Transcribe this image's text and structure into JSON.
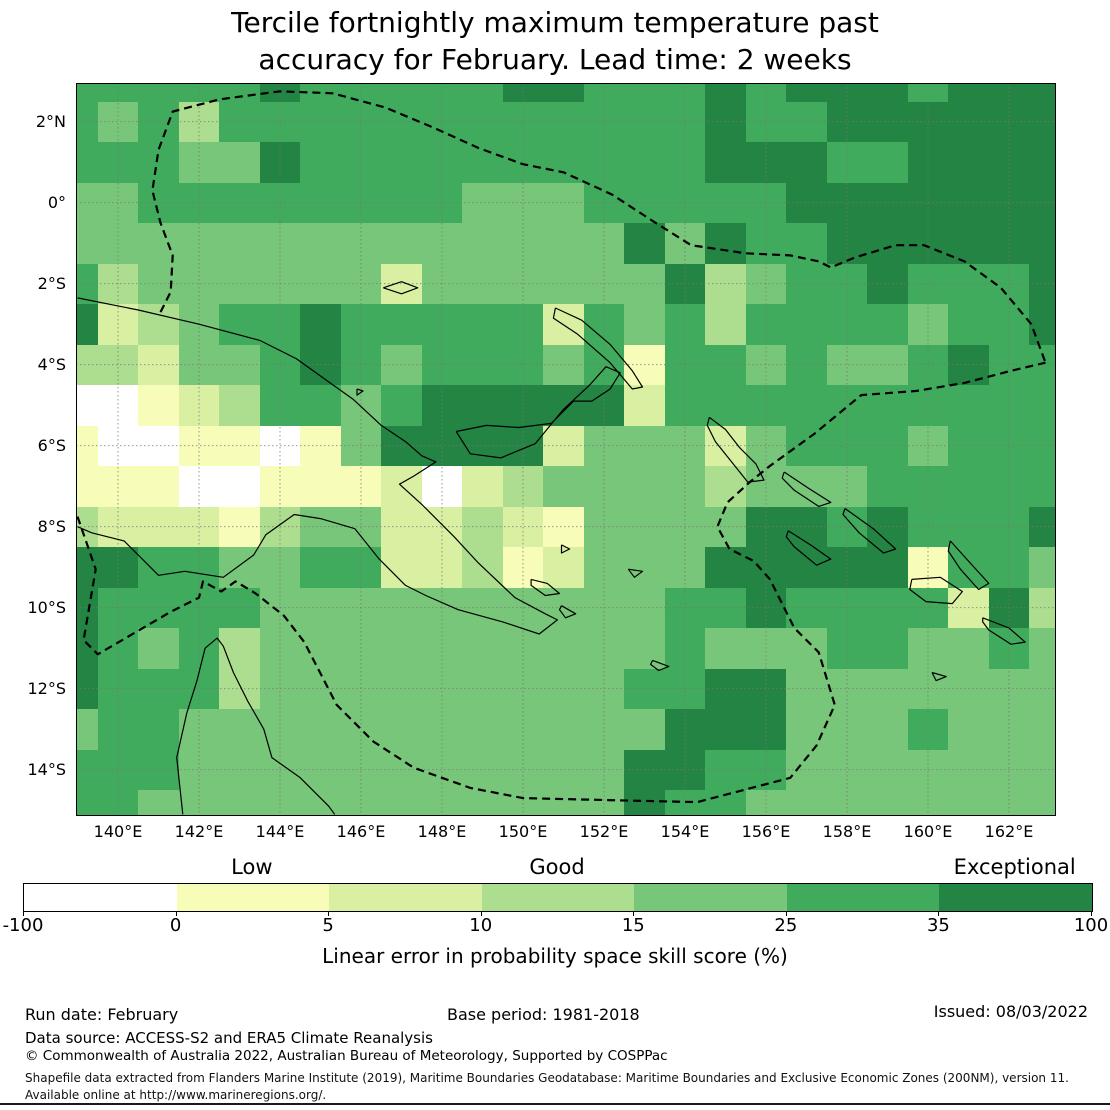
{
  "title": {
    "line1": "Tercile fortnightly maximum temperature past",
    "line2": "accuracy for February. Lead time: 2 weeks"
  },
  "axes": {
    "y_labels": [
      "2°N",
      "0°",
      "2°S",
      "4°S",
      "6°S",
      "8°S",
      "10°S",
      "12°S",
      "14°S"
    ],
    "x_labels": [
      "140°E",
      "142°E",
      "144°E",
      "146°E",
      "148°E",
      "150°E",
      "152°E",
      "154°E",
      "156°E",
      "158°E",
      "160°E",
      "162°E"
    ]
  },
  "colorbar": {
    "category_labels": [
      "Low",
      "Good",
      "Exceptional"
    ],
    "category_over_segment": [
      1,
      3,
      6
    ],
    "tick_labels": [
      "-100",
      "0",
      "5",
      "10",
      "15",
      "25",
      "35",
      "100"
    ],
    "axis_label": "Linear error in probability space skill score (%)",
    "segment_colors": [
      "#ffffff",
      "#f7fcb9",
      "#d9f0a3",
      "#addd8e",
      "#78c679",
      "#41ab5d",
      "#238443"
    ]
  },
  "footer": {
    "run_date": "Run date: February",
    "base_period": "Base period: 1981-2018",
    "issued": "Issued: 08/03/2022",
    "data_source": "Data source: ACCESS-S2 and ERA5 Climate Reanalysis",
    "copyright": "© Commonwealth of Australia 2022, Australian Bureau of Meteorology, Supported by COSPPac",
    "shapefile_note": "Shapefile data extracted from Flanders Marine Institute (2019), Maritime Boundaries Geodatabase: Maritime Boundaries and Exclusive Economic Zones (200NM), version 11.",
    "available_note": "Available online at http://www.marineregions.org/."
  },
  "chart_data": {
    "type": "heatmap",
    "title": "Tercile fortnightly maximum temperature past accuracy for February. Lead time: 2 weeks",
    "colorbar_label": "Linear error in probability space skill score (%)",
    "skill_bins_percent": [
      "-100–0",
      "0–5",
      "5–10",
      "10–15",
      "15–25",
      "25–35",
      "35–100"
    ],
    "bin_quality_labels": {
      "Low": "0–5",
      "Good": "10–15",
      "Exceptional": "35–100"
    },
    "lon_cells_east": [
      139,
      140,
      141,
      142,
      143,
      144,
      145,
      146,
      147,
      148,
      149,
      150,
      151,
      152,
      153,
      154,
      155,
      156,
      157,
      158,
      159,
      160,
      161,
      162,
      163
    ],
    "lat_cells": [
      "3N",
      "2N",
      "1N",
      "0",
      "1S",
      "2S",
      "3S",
      "4S",
      "5S",
      "6S",
      "7S",
      "8S",
      "9S",
      "10S",
      "11S",
      "12S",
      "13S",
      "14S",
      "15S"
    ],
    "grid_bin_index_rows_north_to_south": [
      [
        5,
        5,
        5,
        5,
        5,
        6,
        5,
        5,
        5,
        5,
        5,
        6,
        6,
        5,
        5,
        5,
        6,
        5,
        6,
        6,
        6,
        5,
        6,
        6,
        6
      ],
      [
        5,
        4,
        5,
        3,
        5,
        5,
        5,
        5,
        5,
        5,
        5,
        5,
        5,
        5,
        5,
        5,
        6,
        5,
        5,
        6,
        6,
        6,
        6,
        6,
        6
      ],
      [
        5,
        5,
        5,
        4,
        4,
        6,
        5,
        5,
        5,
        5,
        5,
        5,
        5,
        5,
        5,
        5,
        6,
        6,
        6,
        5,
        5,
        6,
        6,
        6,
        6
      ],
      [
        4,
        4,
        5,
        5,
        5,
        5,
        5,
        5,
        5,
        5,
        4,
        4,
        4,
        5,
        5,
        5,
        5,
        5,
        6,
        6,
        6,
        6,
        6,
        6,
        6
      ],
      [
        4,
        4,
        4,
        4,
        4,
        4,
        4,
        4,
        4,
        4,
        4,
        4,
        4,
        4,
        6,
        4,
        6,
        5,
        5,
        6,
        6,
        6,
        6,
        6,
        6
      ],
      [
        5,
        3,
        4,
        4,
        4,
        4,
        4,
        4,
        2,
        4,
        4,
        4,
        4,
        4,
        4,
        6,
        3,
        4,
        5,
        5,
        6,
        5,
        5,
        5,
        6
      ],
      [
        6,
        2,
        3,
        4,
        5,
        5,
        6,
        5,
        5,
        5,
        5,
        5,
        2,
        5,
        4,
        5,
        3,
        5,
        5,
        5,
        5,
        4,
        5,
        5,
        6
      ],
      [
        3,
        3,
        2,
        4,
        4,
        5,
        6,
        5,
        4,
        5,
        5,
        5,
        4,
        5,
        1,
        5,
        5,
        4,
        5,
        4,
        4,
        5,
        6,
        5,
        5
      ],
      [
        0,
        0,
        1,
        2,
        3,
        5,
        5,
        4,
        5,
        6,
        6,
        6,
        6,
        6,
        2,
        5,
        5,
        5,
        5,
        5,
        5,
        5,
        5,
        5,
        5
      ],
      [
        1,
        0,
        0,
        1,
        1,
        0,
        1,
        4,
        6,
        6,
        6,
        6,
        2,
        4,
        4,
        4,
        2,
        4,
        5,
        5,
        5,
        4,
        5,
        5,
        5
      ],
      [
        1,
        1,
        1,
        0,
        0,
        1,
        1,
        1,
        2,
        0,
        2,
        3,
        4,
        4,
        4,
        4,
        3,
        4,
        4,
        4,
        5,
        5,
        5,
        5,
        5
      ],
      [
        3,
        2,
        2,
        2,
        1,
        3,
        4,
        4,
        2,
        2,
        3,
        2,
        1,
        4,
        4,
        4,
        4,
        6,
        6,
        5,
        6,
        5,
        5,
        5,
        6
      ],
      [
        6,
        6,
        5,
        5,
        4,
        4,
        5,
        5,
        2,
        2,
        3,
        1,
        2,
        4,
        4,
        4,
        6,
        6,
        6,
        6,
        6,
        1,
        5,
        5,
        4
      ],
      [
        6,
        5,
        5,
        5,
        5,
        4,
        4,
        4,
        4,
        4,
        4,
        4,
        4,
        4,
        4,
        5,
        5,
        6,
        5,
        5,
        5,
        5,
        2,
        6,
        3
      ],
      [
        6,
        5,
        4,
        5,
        3,
        4,
        4,
        4,
        4,
        4,
        4,
        4,
        4,
        4,
        4,
        5,
        4,
        4,
        4,
        5,
        5,
        4,
        4,
        5,
        4
      ],
      [
        6,
        5,
        5,
        5,
        3,
        4,
        4,
        4,
        4,
        4,
        4,
        4,
        4,
        4,
        5,
        5,
        6,
        6,
        4,
        4,
        4,
        4,
        4,
        4,
        4
      ],
      [
        4,
        5,
        5,
        4,
        4,
        4,
        4,
        4,
        4,
        4,
        4,
        4,
        4,
        4,
        4,
        6,
        6,
        6,
        4,
        4,
        4,
        5,
        4,
        4,
        4
      ],
      [
        5,
        5,
        5,
        4,
        4,
        4,
        4,
        4,
        4,
        4,
        4,
        4,
        4,
        4,
        6,
        6,
        5,
        5,
        4,
        4,
        4,
        4,
        4,
        4,
        4
      ],
      [
        5,
        5,
        4,
        4,
        4,
        4,
        4,
        4,
        4,
        4,
        4,
        4,
        4,
        4,
        6,
        5,
        5,
        4,
        4,
        4,
        4,
        4,
        4,
        4,
        4
      ]
    ],
    "x_tick_labels": [
      "140°E",
      "142°E",
      "144°E",
      "146°E",
      "148°E",
      "150°E",
      "152°E",
      "154°E",
      "156°E",
      "158°E",
      "160°E",
      "162°E"
    ],
    "y_tick_labels": [
      "2°N",
      "0°",
      "2°S",
      "4°S",
      "6°S",
      "8°S",
      "10°S",
      "12°S",
      "14°S"
    ],
    "legend_position": "bottom",
    "grid_on": true,
    "footer": [
      "Run date: February",
      "Base period: 1981-2018",
      "Issued: 08/03/2022",
      "Data source: ACCESS-S2 and ERA5 Climate Reanalysis",
      "© Commonwealth of Australia 2022, Australian Bureau of Meteorology, Supported by COSPPac"
    ]
  }
}
